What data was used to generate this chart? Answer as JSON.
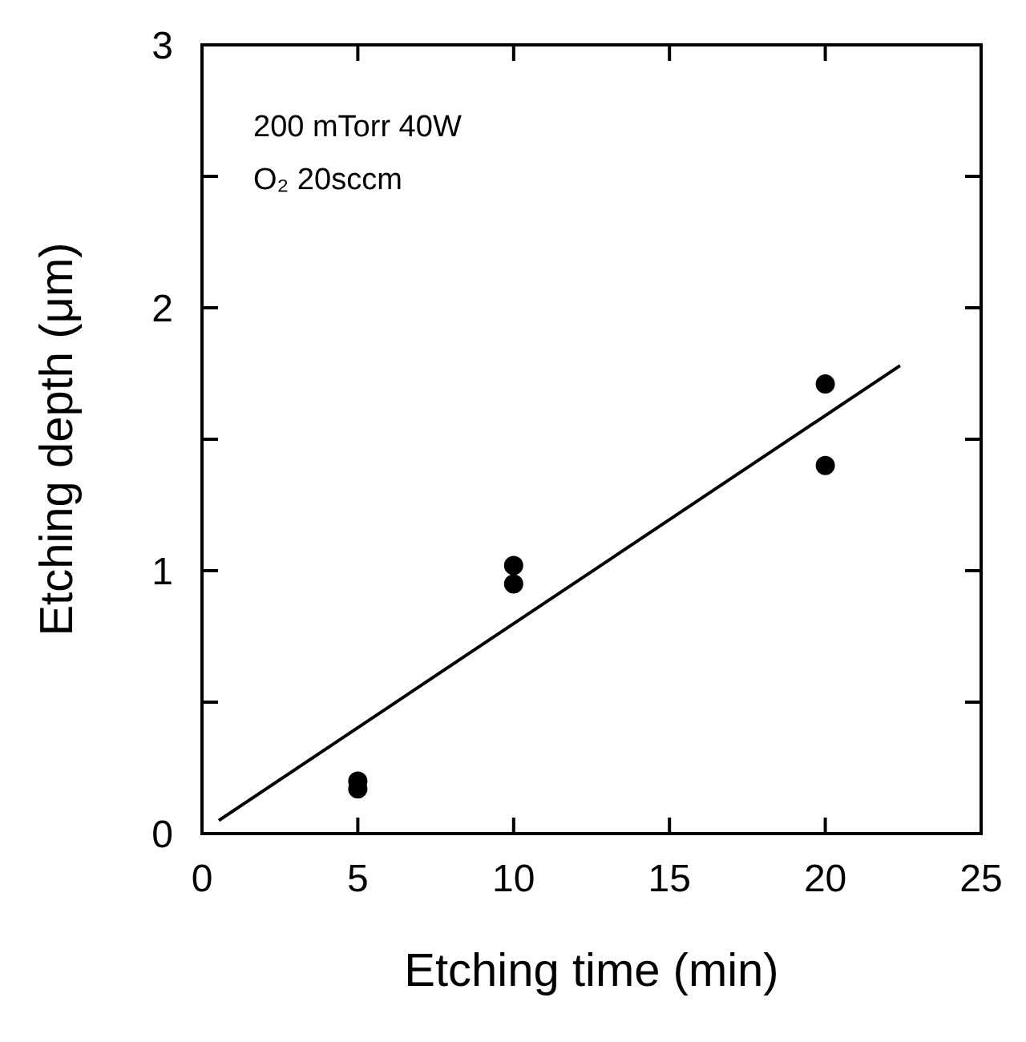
{
  "chart_data": {
    "type": "scatter",
    "xlabel": "Etching time  (min)",
    "ylabel": "Etching depth (μm)",
    "annotations": [
      "200 mTorr 40W",
      "O₂ 20sccm"
    ],
    "series": [
      {
        "color": "#000000",
        "x": [
          5,
          5,
          10,
          10,
          20,
          20
        ],
        "values": [
          0.2,
          0.17,
          1.02,
          0.95,
          1.71,
          1.4
        ],
        "marker": "circle"
      },
      {
        "type": "line",
        "color": "#000000",
        "x": [
          0.54,
          22.4
        ],
        "values": [
          0.05,
          1.78
        ],
        "line_style": "solid"
      }
    ],
    "xlim": [
      0,
      25
    ],
    "xticks": [
      0,
      5,
      10,
      15,
      20,
      25
    ],
    "ylim": [
      0,
      3
    ],
    "yticks": [
      0,
      {
        "value": 0.5,
        "label": null
      },
      1,
      {
        "value": 1.5,
        "label": null
      },
      2,
      {
        "value": 2.5,
        "label": null
      },
      3
    ],
    "grid": false
  }
}
